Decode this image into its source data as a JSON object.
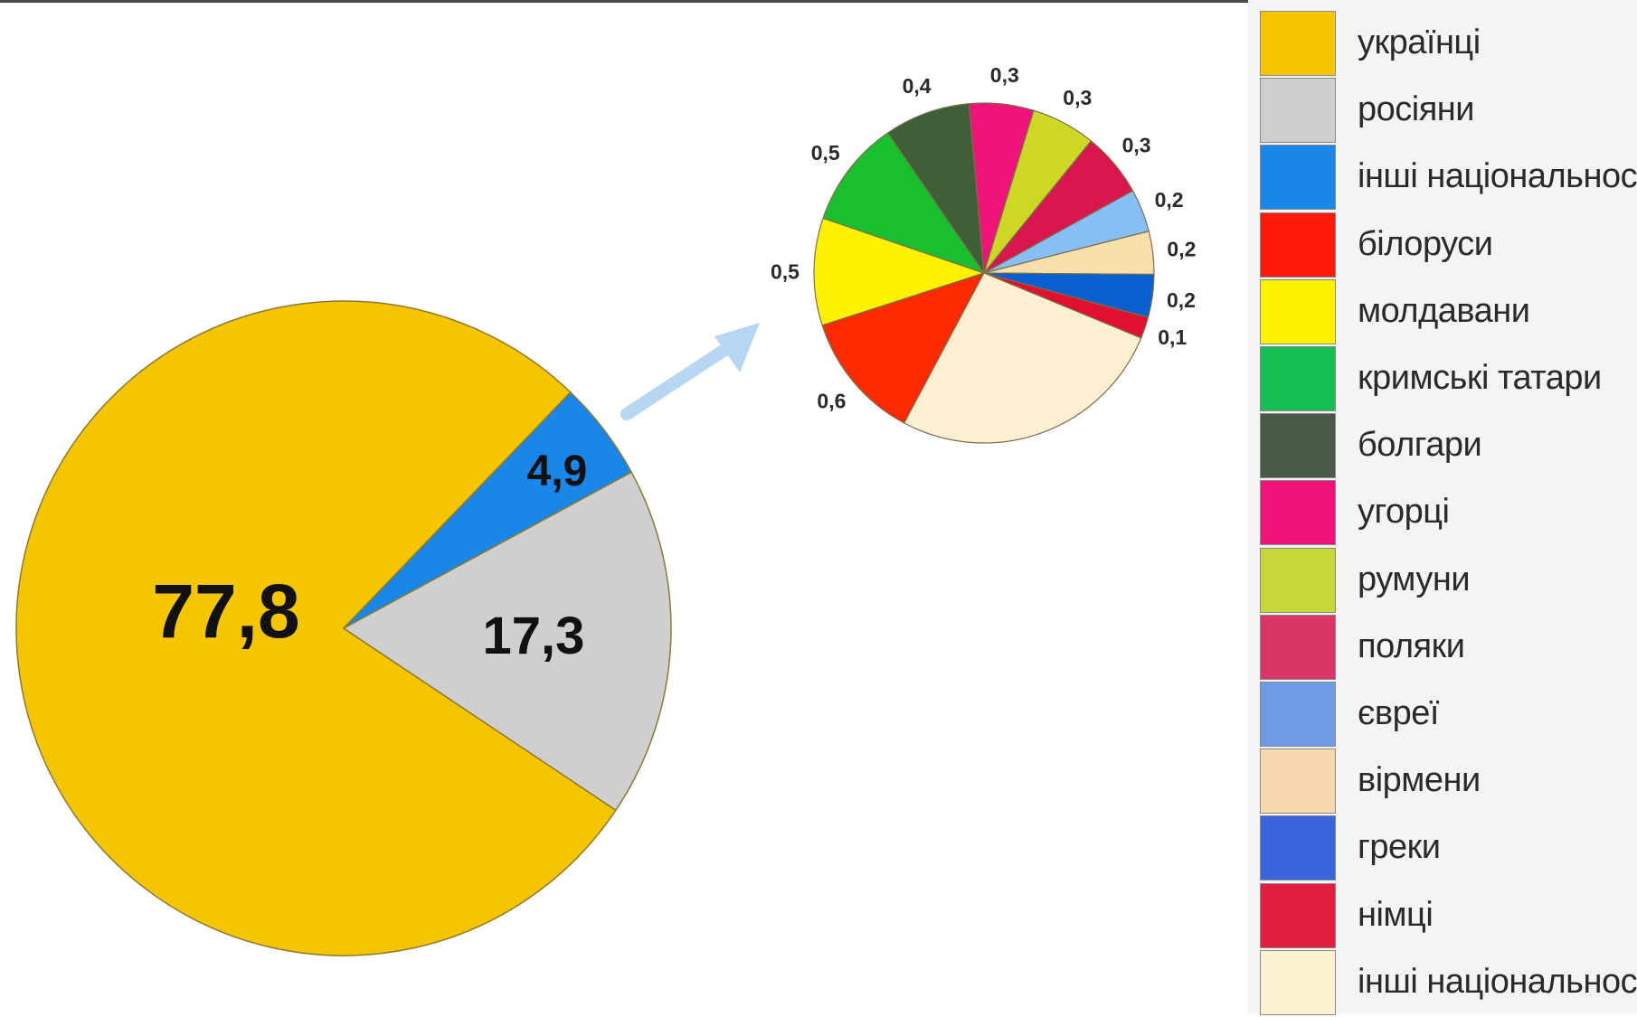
{
  "chart_data": [
    {
      "type": "pie",
      "slices": [
        {
          "label": "українці",
          "value": 77.8,
          "display": "77,8",
          "color": "#F5C500"
        },
        {
          "label": "росіяни",
          "value": 17.3,
          "display": "17,3",
          "color": "#CFCFCF"
        },
        {
          "label": "інші національності",
          "value": 4.9,
          "display": "4,9",
          "color": "#1A86E8"
        }
      ]
    },
    {
      "type": "pie",
      "slices": [
        {
          "label": "білоруси",
          "value": 0.6,
          "display": "0,6",
          "color": "#FF2A00"
        },
        {
          "label": "молдавани",
          "value": 0.5,
          "display": "0,5",
          "color": "#FFF200"
        },
        {
          "label": "кримські татари",
          "value": 0.5,
          "display": "0,5",
          "color": "#1ABF2F"
        },
        {
          "label": "болгари",
          "value": 0.4,
          "display": "0,4",
          "color": "#3F5F39"
        },
        {
          "label": "угорці",
          "value": 0.3,
          "display": "0,3",
          "color": "#F0147A"
        },
        {
          "label": "румуни",
          "value": 0.3,
          "display": "0,3",
          "color": "#CCD726"
        },
        {
          "label": "поляки",
          "value": 0.3,
          "display": "0,3",
          "color": "#D8174E"
        },
        {
          "label": "євреї",
          "value": 0.2,
          "display": "0,2",
          "color": "#87BFF5"
        },
        {
          "label": "вірмени",
          "value": 0.2,
          "display": "0,2",
          "color": "#F9DFAB"
        },
        {
          "label": "греки",
          "value": 0.2,
          "display": "0,2",
          "color": "#0A5FD0"
        },
        {
          "label": "німці",
          "value": 0.1,
          "display": "0,1",
          "color": "#E0102E"
        },
        {
          "label": "інші національності",
          "value": 1.3,
          "display": "",
          "color": "#FCEFD2"
        }
      ]
    }
  ],
  "legend": [
    {
      "label": "українці",
      "color": "#F5C500"
    },
    {
      "label": "росіяни",
      "color": "#CFCFCF"
    },
    {
      "label": "інші національності",
      "color": "#1A86E8"
    },
    {
      "label": "білоруси",
      "color": "#FF1A0A"
    },
    {
      "label": "молдавани",
      "color": "#FFF200"
    },
    {
      "label": "кримські татари",
      "color": "#15C152"
    },
    {
      "label": "болгари",
      "color": "#485948"
    },
    {
      "label": "угорці",
      "color": "#F0147A"
    },
    {
      "label": "румуни",
      "color": "#C7D63A"
    },
    {
      "label": "поляки",
      "color": "#DB3566"
    },
    {
      "label": "євреї",
      "color": "#6E9BE6"
    },
    {
      "label": "вірмени",
      "color": "#F8D9AE"
    },
    {
      "label": "греки",
      "color": "#3A64DB"
    },
    {
      "label": "німці",
      "color": "#E0203E"
    },
    {
      "label": "інші національності",
      "color": "#FCF2CF"
    }
  ]
}
